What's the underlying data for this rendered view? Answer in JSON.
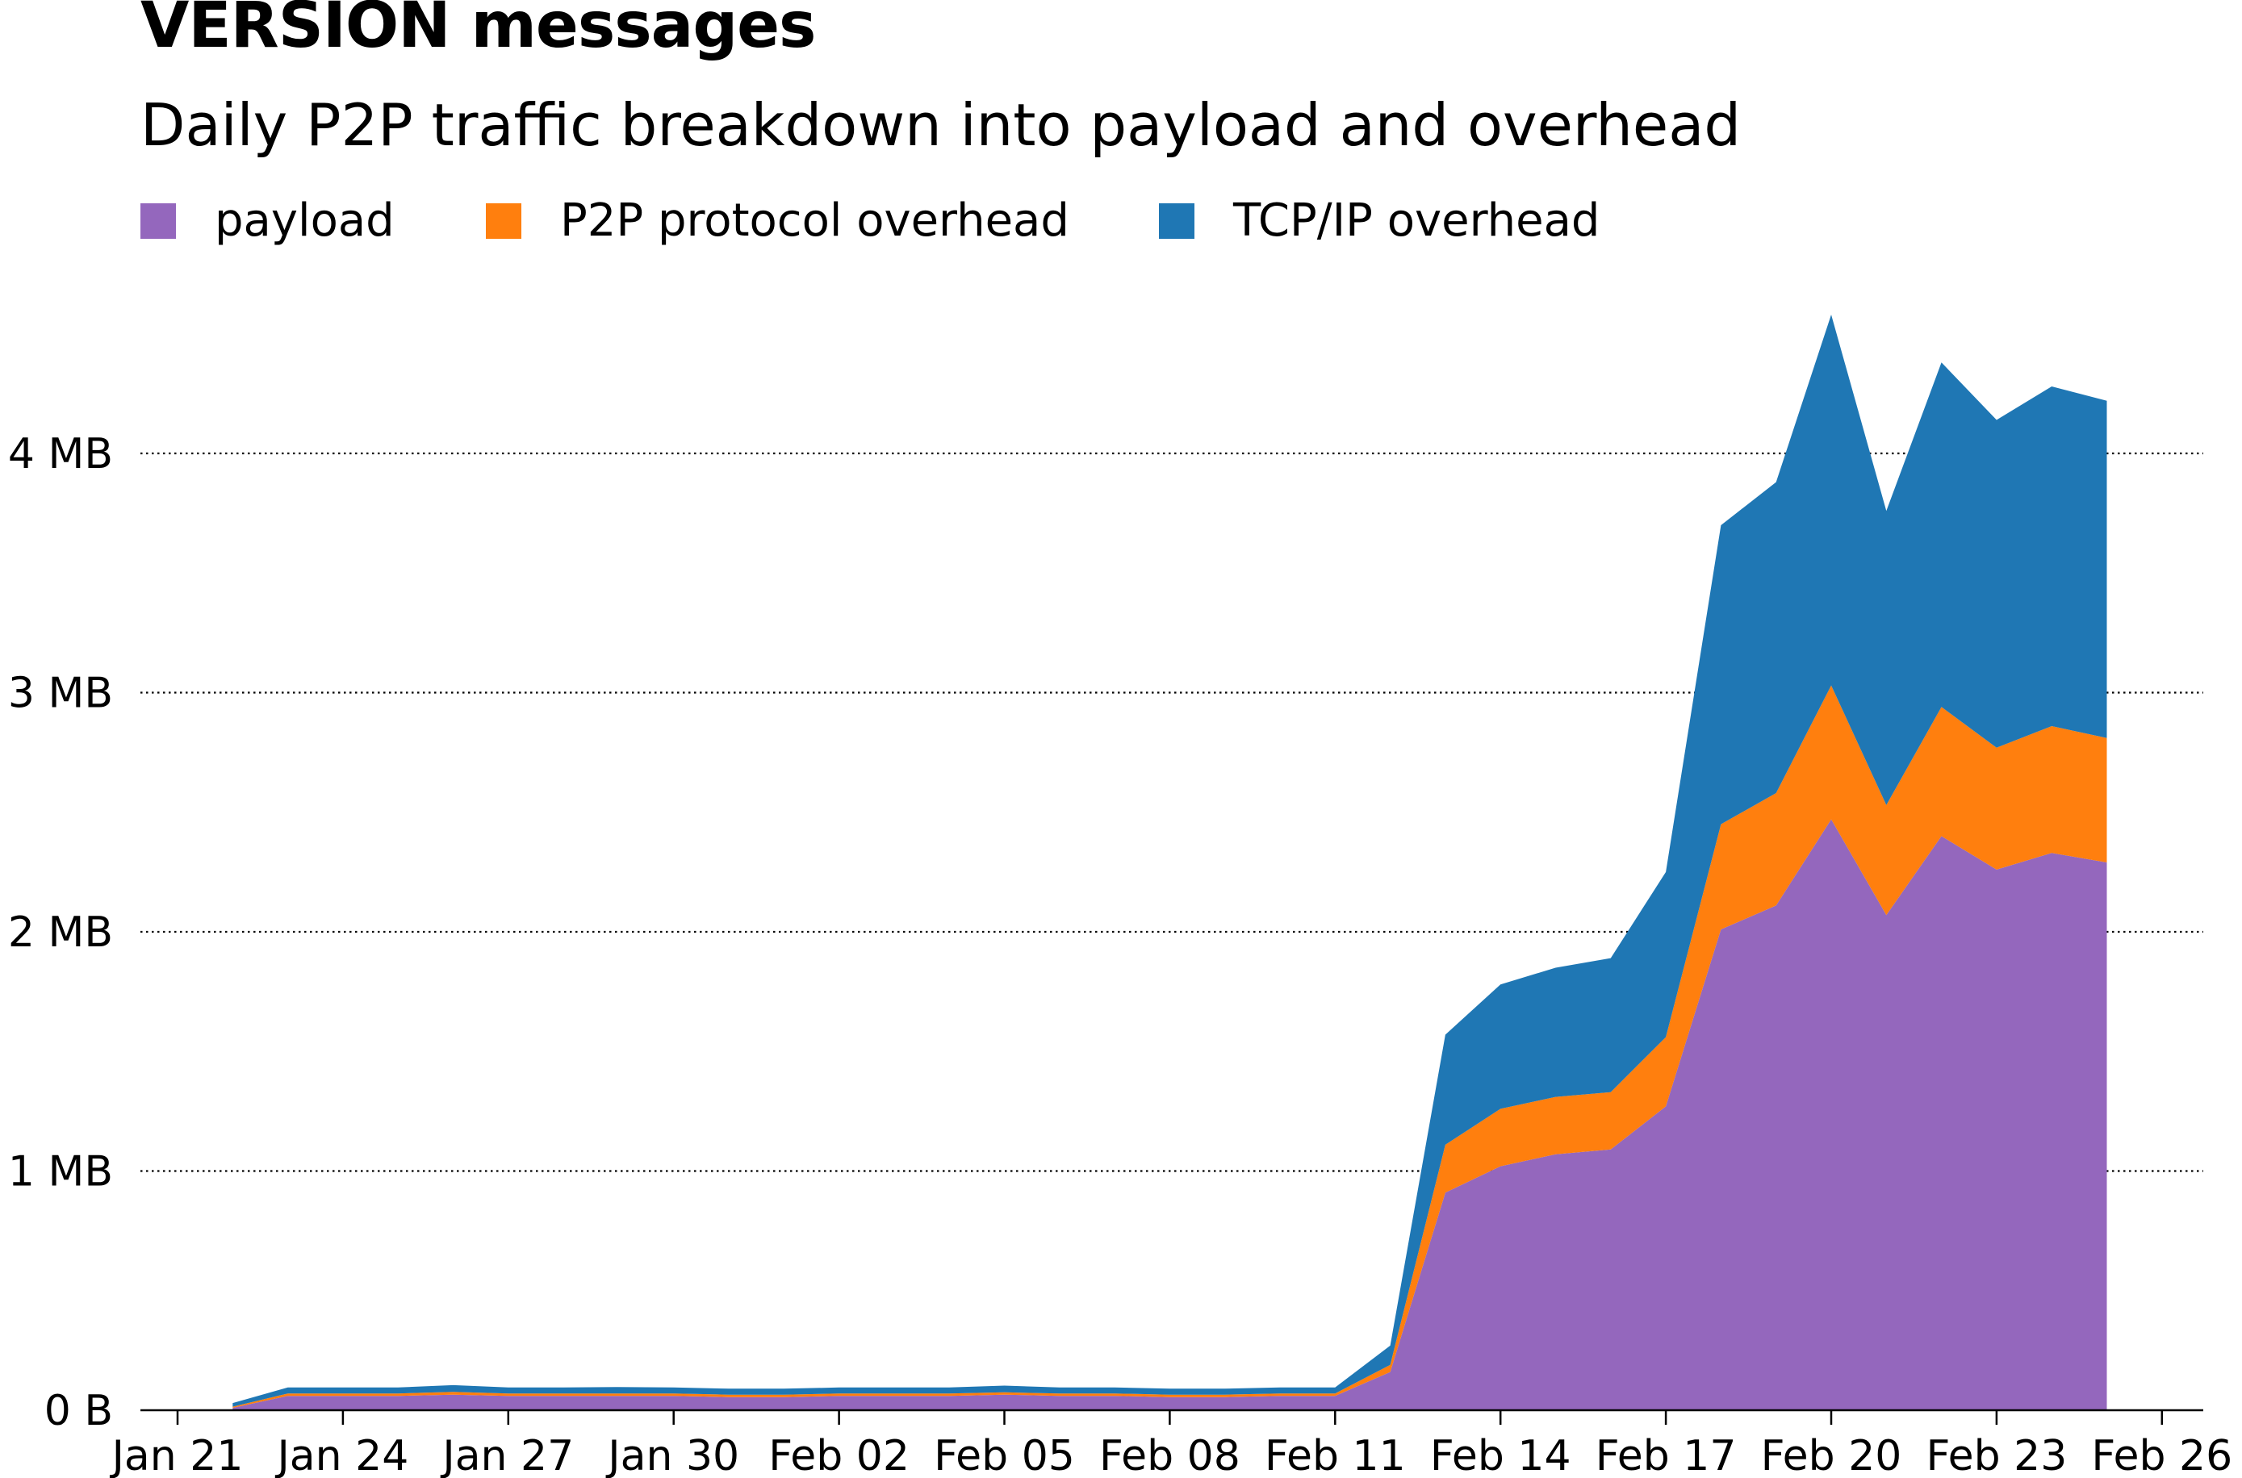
{
  "chart_data": {
    "type": "area",
    "stacked": true,
    "title": "VERSION messages",
    "subtitle": "Daily P2P traffic breakdown into payload and overhead",
    "xlabel": "",
    "ylabel": "",
    "x_ticks": [
      "Jan 21",
      "Jan 24",
      "Jan 27",
      "Jan 30",
      "Feb 02",
      "Feb 05",
      "Feb 08",
      "Feb 11",
      "Feb 14",
      "Feb 17",
      "Feb 20",
      "Feb 23",
      "Feb 26"
    ],
    "y_ticks": [
      "0 B",
      "1 MB",
      "2 MB",
      "3 MB",
      "4 MB"
    ],
    "ylim": [
      0,
      4.8
    ],
    "xlim": [
      "2022-01-20",
      "2022-02-26"
    ],
    "grid": "horizontal dotted",
    "legend_position": "top-left",
    "x": [
      "2022-01-22",
      "2022-01-23",
      "2022-01-24",
      "2022-01-25",
      "2022-01-26",
      "2022-01-27",
      "2022-01-28",
      "2022-01-29",
      "2022-01-30",
      "2022-01-31",
      "2022-02-01",
      "2022-02-02",
      "2022-02-03",
      "2022-02-04",
      "2022-02-05",
      "2022-02-06",
      "2022-02-07",
      "2022-02-08",
      "2022-02-09",
      "2022-02-10",
      "2022-02-11",
      "2022-02-12",
      "2022-02-13",
      "2022-02-14",
      "2022-02-15",
      "2022-02-16",
      "2022-02-17",
      "2022-02-18",
      "2022-02-19",
      "2022-02-20",
      "2022-02-21",
      "2022-02-22",
      "2022-02-23",
      "2022-02-24",
      "2022-02-25"
    ],
    "series": [
      {
        "name": "payload",
        "color": "#9467bd",
        "values": [
          0.01,
          0.06,
          0.06,
          0.06,
          0.065,
          0.06,
          0.06,
          0.06,
          0.06,
          0.055,
          0.055,
          0.06,
          0.06,
          0.06,
          0.065,
          0.06,
          0.06,
          0.055,
          0.055,
          0.06,
          0.06,
          0.16,
          0.91,
          1.02,
          1.07,
          1.09,
          1.27,
          2.01,
          2.11,
          2.47,
          2.07,
          2.4,
          2.26,
          2.33,
          2.29
        ]
      },
      {
        "name": "P2P protocol overhead",
        "color": "#ff7f0e",
        "values": [
          0.005,
          0.01,
          0.01,
          0.01,
          0.012,
          0.01,
          0.01,
          0.01,
          0.01,
          0.01,
          0.01,
          0.01,
          0.01,
          0.01,
          0.01,
          0.01,
          0.01,
          0.01,
          0.01,
          0.01,
          0.01,
          0.03,
          0.2,
          0.24,
          0.24,
          0.24,
          0.29,
          0.44,
          0.47,
          0.56,
          0.46,
          0.54,
          0.51,
          0.53,
          0.52
        ]
      },
      {
        "name": "TCP/IP overhead",
        "color": "#1f77b4",
        "values": [
          0.015,
          0.025,
          0.025,
          0.025,
          0.028,
          0.025,
          0.025,
          0.027,
          0.025,
          0.025,
          0.025,
          0.025,
          0.025,
          0.025,
          0.028,
          0.025,
          0.025,
          0.025,
          0.025,
          0.025,
          0.025,
          0.08,
          0.46,
          0.52,
          0.54,
          0.56,
          0.69,
          1.25,
          1.3,
          1.55,
          1.23,
          1.44,
          1.37,
          1.42,
          1.41
        ]
      }
    ]
  }
}
